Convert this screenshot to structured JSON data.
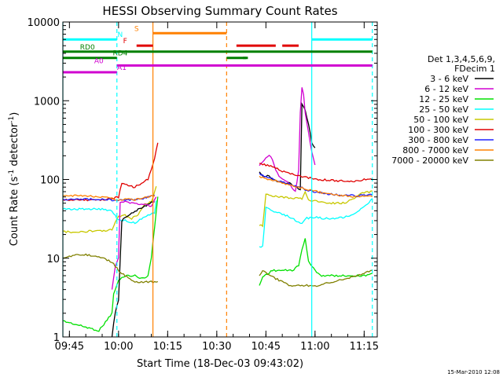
{
  "chart_data": {
    "type": "line",
    "title": "HESSI Observing Summary Count Rates",
    "xlabel": "Start Time (18-Dec-03 09:43:02)",
    "ylabel_main": "Count Rate (s",
    "ylabel_sup1": "-1",
    "ylabel_mid": " detector",
    "ylabel_sup2": "-1",
    "ylabel_end": ")",
    "footer": "15-Mar-2010 12:08",
    "x_unit": "minutes",
    "xlim": [
      -2,
      94
    ],
    "ylim": [
      1,
      10000
    ],
    "yscale": "log",
    "x_ticks": [
      {
        "t": 0,
        "label": "09:45"
      },
      {
        "t": 15,
        "label": "10:00"
      },
      {
        "t": 30,
        "label": "10:15"
      },
      {
        "t": 45,
        "label": "10:30"
      },
      {
        "t": 60,
        "label": "10:45"
      },
      {
        "t": 75,
        "label": "11:00"
      },
      {
        "t": 90,
        "label": "11:15"
      }
    ],
    "y_ticks": [
      {
        "v": 1,
        "label": "1"
      },
      {
        "v": 10,
        "label": "10"
      },
      {
        "v": 100,
        "label": "100"
      },
      {
        "v": 1000,
        "label": "1000"
      },
      {
        "v": 10000,
        "label": "10000"
      }
    ],
    "legend": {
      "placement": "right",
      "header": [
        "Det 1,3,4,5,6,9,",
        "FDecim 1"
      ],
      "entries": [
        {
          "label": "3 - 6 keV",
          "color": "#000000"
        },
        {
          "label": "6 - 12 keV",
          "color": "#d000d0"
        },
        {
          "label": "12 - 25 keV",
          "color": "#00e000"
        },
        {
          "label": "25 - 50 keV",
          "color": "#00ffff"
        },
        {
          "label": "50 - 100 keV",
          "color": "#c8c800"
        },
        {
          "label": "100 - 300 keV",
          "color": "#e00000"
        },
        {
          "label": "300 - 800 keV",
          "color": "#2020ff"
        },
        {
          "label": "800 - 7000 keV",
          "color": "#ff8000"
        },
        {
          "label": "7000 - 20000 keV",
          "color": "#808000"
        }
      ]
    },
    "series": [
      {
        "color": "#00e000",
        "points": [
          [
            -2,
            1.6
          ],
          [
            3,
            1.4
          ],
          [
            6,
            1.3
          ],
          [
            9,
            1.2
          ],
          [
            13,
            2
          ],
          [
            13.5,
            3.5
          ],
          [
            14,
            4
          ],
          [
            15,
            5.2
          ],
          [
            17,
            6
          ],
          [
            20,
            6
          ],
          [
            22,
            5.5
          ],
          [
            24,
            6
          ],
          [
            25,
            10
          ],
          [
            26,
            25
          ],
          [
            27,
            60
          ],
          [
            58,
            4.5
          ],
          [
            59,
            5.8
          ],
          [
            62,
            7
          ],
          [
            65,
            7
          ],
          [
            68,
            7
          ],
          [
            70,
            8
          ],
          [
            71,
            13
          ],
          [
            72,
            18
          ],
          [
            73,
            9
          ],
          [
            75,
            7
          ],
          [
            77,
            6
          ],
          [
            80,
            6
          ],
          [
            85,
            6
          ],
          [
            90,
            6
          ],
          [
            92.5,
            6.5
          ]
        ]
      },
      {
        "color": "#c8c800",
        "points": [
          [
            -2,
            22
          ],
          [
            2,
            21
          ],
          [
            6,
            22
          ],
          [
            10,
            22
          ],
          [
            13,
            23
          ],
          [
            15,
            34
          ],
          [
            17,
            35
          ],
          [
            19,
            32
          ],
          [
            21,
            36
          ],
          [
            23,
            48
          ],
          [
            25,
            52
          ],
          [
            26.5,
            80
          ],
          [
            58,
            26
          ],
          [
            59,
            26
          ],
          [
            60,
            65
          ],
          [
            62,
            62
          ],
          [
            65,
            60
          ],
          [
            68,
            58
          ],
          [
            71,
            57
          ],
          [
            72,
            70
          ],
          [
            73,
            55
          ],
          [
            76,
            52
          ],
          [
            80,
            50
          ],
          [
            84,
            50
          ],
          [
            86,
            55
          ],
          [
            88,
            62
          ],
          [
            90,
            68
          ],
          [
            92.5,
            70
          ]
        ]
      },
      {
        "color": "#00ffff",
        "points": [
          [
            -2,
            42
          ],
          [
            2,
            42
          ],
          [
            6,
            42
          ],
          [
            10,
            42
          ],
          [
            13,
            40
          ],
          [
            15,
            30
          ],
          [
            17,
            30
          ],
          [
            20,
            28
          ],
          [
            22,
            32
          ],
          [
            24,
            35
          ],
          [
            26,
            38
          ],
          [
            26.5,
            55
          ],
          [
            58,
            14
          ],
          [
            59,
            14
          ],
          [
            60,
            45
          ],
          [
            62,
            40
          ],
          [
            65,
            36
          ],
          [
            67,
            34
          ],
          [
            69,
            30
          ],
          [
            71,
            27
          ],
          [
            72,
            32
          ],
          [
            75,
            33
          ],
          [
            78,
            32
          ],
          [
            82,
            32
          ],
          [
            86,
            35
          ],
          [
            90,
            45
          ],
          [
            92.5,
            56
          ]
        ]
      },
      {
        "color": "#000000",
        "points": [
          [
            13,
            1
          ],
          [
            13.5,
            1.5
          ],
          [
            14,
            2
          ],
          [
            15,
            3
          ],
          [
            16,
            30
          ],
          [
            17,
            33
          ],
          [
            19,
            37
          ],
          [
            22,
            44
          ],
          [
            24,
            48
          ],
          [
            26,
            53
          ],
          [
            58,
            125
          ],
          [
            59,
            112
          ],
          [
            61,
            110
          ],
          [
            63,
            95
          ],
          [
            65,
            92
          ],
          [
            67,
            90
          ],
          [
            69,
            80
          ],
          [
            70.5,
            75
          ],
          [
            71,
            900
          ],
          [
            72,
            750
          ],
          [
            73,
            500
          ],
          [
            74,
            300
          ],
          [
            75,
            250
          ]
        ]
      },
      {
        "color": "#d000d0",
        "points": [
          [
            13,
            4
          ],
          [
            14,
            8
          ],
          [
            15,
            10
          ],
          [
            15.5,
            50
          ],
          [
            17,
            52
          ],
          [
            20,
            50
          ],
          [
            23,
            48
          ],
          [
            25,
            46
          ],
          [
            26.5,
            60
          ],
          [
            58,
            150
          ],
          [
            59,
            170
          ],
          [
            60,
            190
          ],
          [
            61,
            200
          ],
          [
            62,
            180
          ],
          [
            63,
            130
          ],
          [
            64,
            110
          ],
          [
            65,
            100
          ],
          [
            66,
            95
          ],
          [
            67,
            90
          ],
          [
            68,
            78
          ],
          [
            69,
            70
          ],
          [
            70,
            130
          ],
          [
            70.5,
            700
          ],
          [
            71,
            1500
          ],
          [
            71.5,
            1200
          ],
          [
            72,
            700
          ],
          [
            73,
            400
          ],
          [
            74,
            220
          ],
          [
            75,
            150
          ]
        ]
      },
      {
        "color": "#e00000",
        "points": [
          [
            -2,
            55
          ],
          [
            2,
            55
          ],
          [
            6,
            55
          ],
          [
            10,
            55
          ],
          [
            13,
            57
          ],
          [
            15,
            60
          ],
          [
            16,
            90
          ],
          [
            17,
            85
          ],
          [
            20,
            80
          ],
          [
            22,
            90
          ],
          [
            24,
            100
          ],
          [
            26,
            180
          ],
          [
            27,
            300
          ],
          [
            58,
            160
          ],
          [
            59,
            155
          ],
          [
            61,
            150
          ],
          [
            63,
            140
          ],
          [
            65,
            128
          ],
          [
            67,
            120
          ],
          [
            70,
            112
          ],
          [
            73,
            105
          ],
          [
            76,
            100
          ],
          [
            80,
            98
          ],
          [
            84,
            95
          ],
          [
            88,
            95
          ],
          [
            90,
            100
          ],
          [
            92.5,
            102
          ]
        ]
      },
      {
        "color": "#2020ff",
        "points": [
          [
            -2,
            56
          ],
          [
            2,
            56
          ],
          [
            6,
            56
          ],
          [
            10,
            56
          ],
          [
            13,
            55
          ],
          [
            15,
            55
          ],
          [
            17,
            56
          ],
          [
            20,
            55
          ],
          [
            22,
            57
          ],
          [
            24,
            60
          ],
          [
            26,
            62
          ],
          [
            58,
            120
          ],
          [
            59,
            112
          ],
          [
            61,
            105
          ],
          [
            63,
            100
          ],
          [
            65,
            92
          ],
          [
            67,
            88
          ],
          [
            69,
            82
          ],
          [
            71,
            78
          ],
          [
            73,
            72
          ],
          [
            76,
            68
          ],
          [
            80,
            65
          ],
          [
            84,
            63
          ],
          [
            88,
            62
          ],
          [
            92.5,
            64
          ]
        ]
      },
      {
        "color": "#ff8000",
        "points": [
          [
            -2,
            62
          ],
          [
            2,
            62
          ],
          [
            6,
            61
          ],
          [
            10,
            60
          ],
          [
            13,
            57
          ],
          [
            15,
            55
          ],
          [
            17,
            56
          ],
          [
            20,
            55
          ],
          [
            22,
            58
          ],
          [
            24,
            60
          ],
          [
            26,
            62
          ],
          [
            58,
            110
          ],
          [
            59,
            105
          ],
          [
            61,
            100
          ],
          [
            63,
            96
          ],
          [
            65,
            90
          ],
          [
            67,
            85
          ],
          [
            70,
            80
          ],
          [
            73,
            74
          ],
          [
            76,
            70
          ],
          [
            80,
            64
          ],
          [
            84,
            62
          ],
          [
            88,
            60
          ],
          [
            92.5,
            62
          ]
        ]
      },
      {
        "color": "#808000",
        "points": [
          [
            -2,
            10
          ],
          [
            2,
            11
          ],
          [
            6,
            11
          ],
          [
            10,
            10
          ],
          [
            13,
            9
          ],
          [
            15,
            7
          ],
          [
            17,
            6
          ],
          [
            20,
            5
          ],
          [
            22,
            5
          ],
          [
            24,
            5
          ],
          [
            26,
            5
          ],
          [
            27,
            5
          ],
          [
            58,
            6
          ],
          [
            59,
            7
          ],
          [
            61,
            6
          ],
          [
            63,
            5.5
          ],
          [
            65,
            5
          ],
          [
            67,
            4.5
          ],
          [
            70,
            4.5
          ],
          [
            73,
            4.5
          ],
          [
            76,
            4.5
          ],
          [
            80,
            5
          ],
          [
            84,
            5.5
          ],
          [
            88,
            6
          ],
          [
            92.5,
            7
          ]
        ]
      }
    ],
    "vlines": [
      {
        "t": -2,
        "color": "#00ffff",
        "dashed": false
      },
      {
        "t": 14.5,
        "color": "#00ffff",
        "dashed": true
      },
      {
        "t": 25.5,
        "color": "#ff8000",
        "dashed": false
      },
      {
        "t": 48,
        "color": "#ff8000",
        "dashed": true
      },
      {
        "t": 74,
        "color": "#00ffff",
        "dashed": false
      },
      {
        "t": 92.5,
        "color": "#00ffff",
        "dashed": true
      }
    ],
    "flags": [
      {
        "label": "N",
        "color": "#00ffff",
        "y": 6000,
        "segments": [
          [
            -2,
            14.5
          ],
          [
            74,
            92.5
          ]
        ],
        "label_t": 15.5
      },
      {
        "label": "S",
        "color": "#ff8000",
        "y": 7200,
        "segments": [
          [
            25.5,
            48
          ]
        ],
        "label_t": 20.5
      },
      {
        "label": "F",
        "color": "#e00000",
        "y": 5000,
        "segments": [
          [
            20.5,
            25.5
          ],
          [
            51,
            63
          ],
          [
            65,
            70
          ]
        ],
        "label_t": 17
      },
      {
        "label": "RD0",
        "color": "#008000",
        "y": 4200,
        "segments": [
          [
            -2,
            14.5
          ],
          [
            14.5,
            92.5
          ]
        ],
        "label_t": 5.5
      },
      {
        "label": "RD4",
        "color": "#008000",
        "y": 3500,
        "segments": [
          [
            -2,
            14.5
          ],
          [
            48,
            54
          ],
          [
            53,
            54.5
          ]
        ],
        "label_t": 15.5
      },
      {
        "label": "A0",
        "color": "#d000d0",
        "y": 2800,
        "segments": [
          [
            14.5,
            92.5
          ]
        ],
        "label_t": 9
      },
      {
        "label": "A1",
        "color": "#d000d0",
        "y": 2300,
        "segments": [
          [
            -2,
            14.5
          ]
        ],
        "label_t": 16
      }
    ]
  }
}
